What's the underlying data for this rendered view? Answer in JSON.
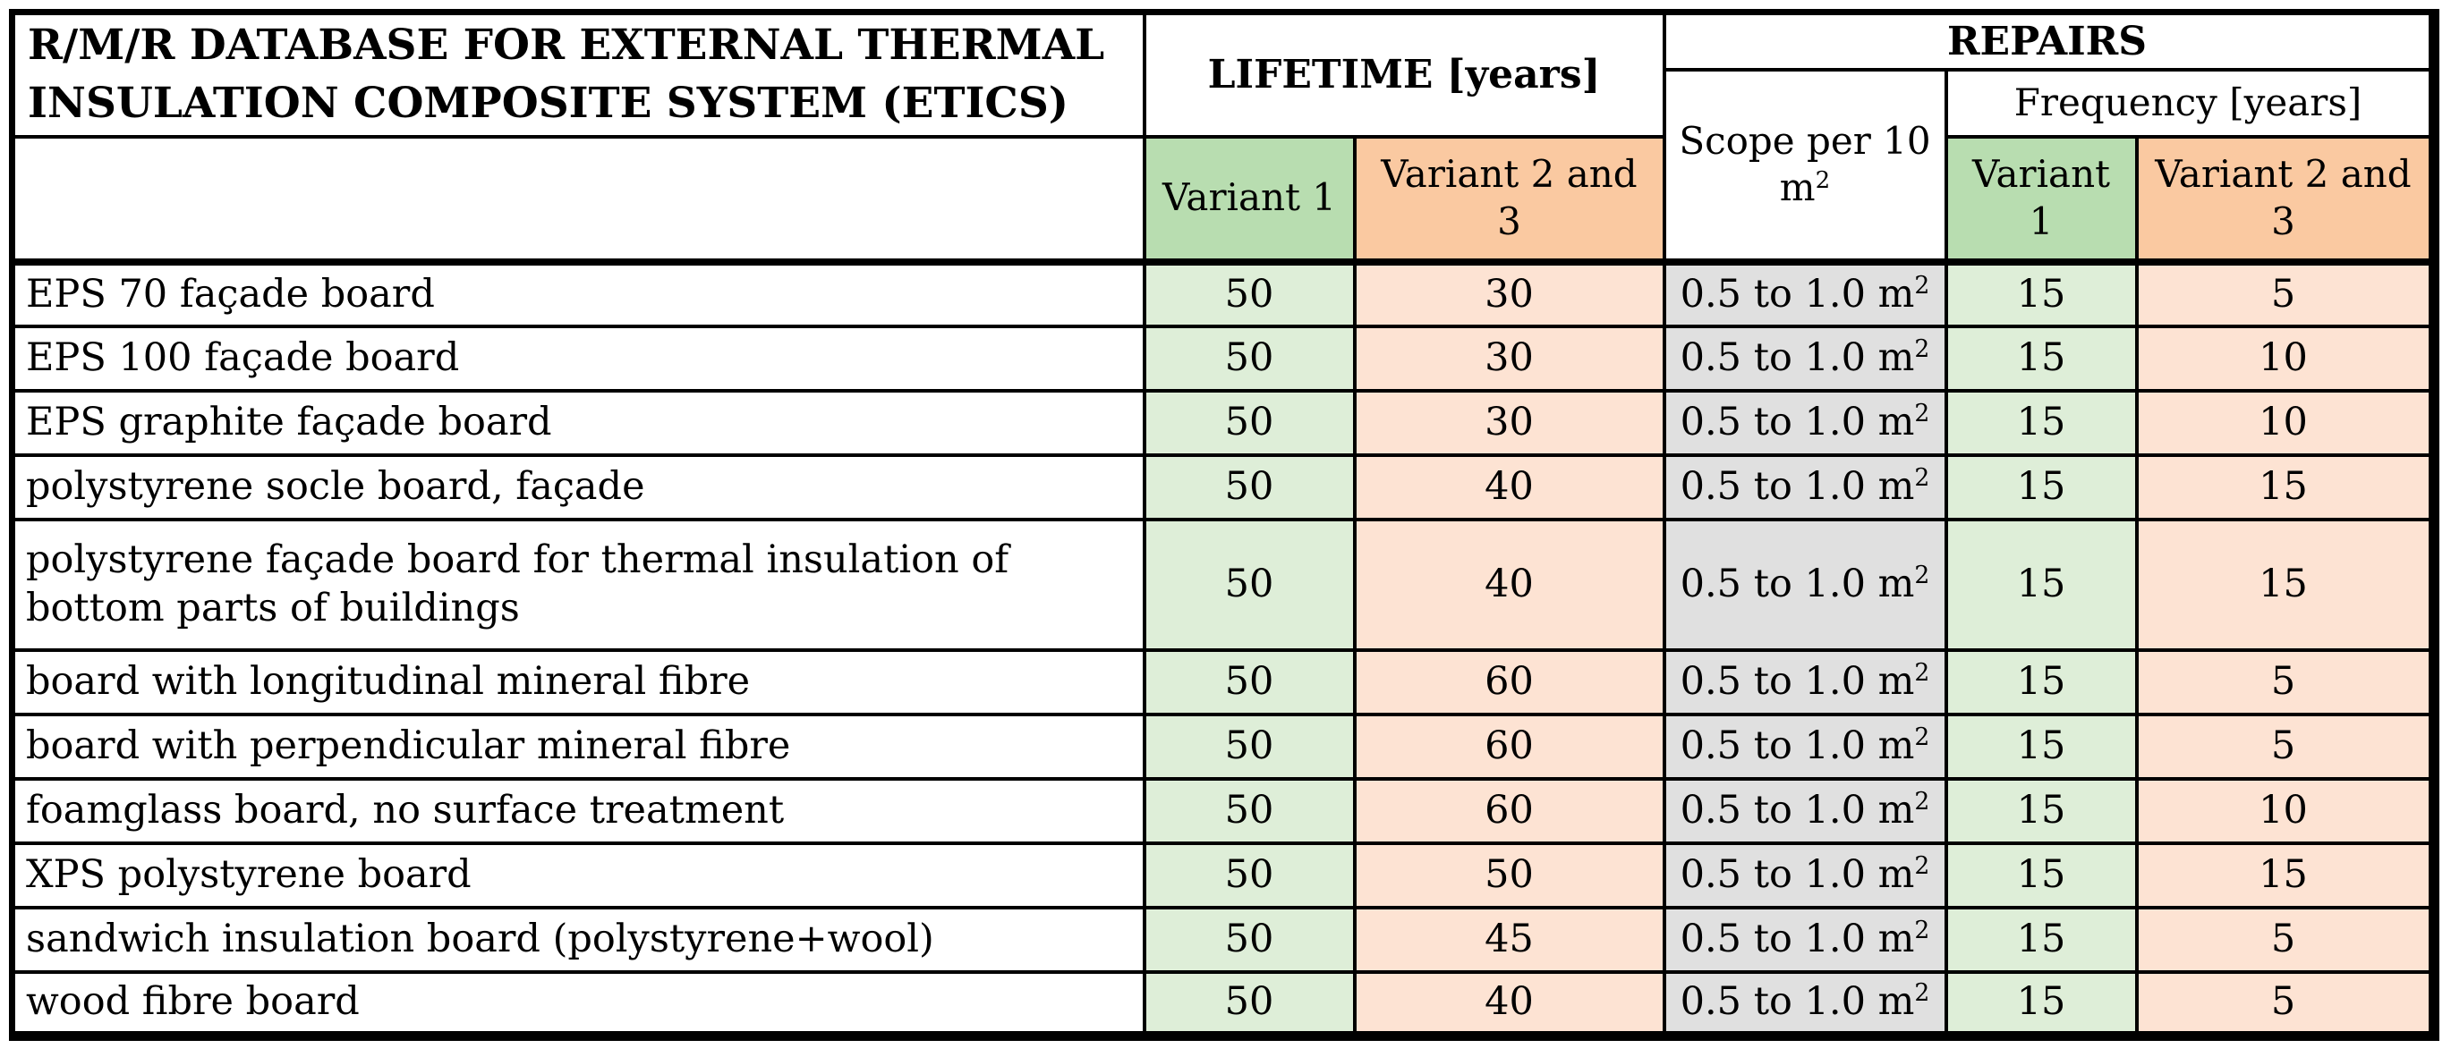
{
  "header": {
    "title": "R/M/R DATABASE FOR EXTERNAL THERMAL\nINSULATION COMPOSITE SYSTEM (ETICS)",
    "lifetime": "LIFETIME [years]",
    "repairs": "REPAIRS",
    "scope": "Scope per 10\nm²",
    "frequency": "Frequency [years]",
    "lifetime_variant1": "Variant 1",
    "lifetime_variant23": "Variant 2 and\n3",
    "frequency_variant1": "Variant\n1",
    "frequency_variant23": "Variant 2 and\n3"
  },
  "rows": [
    {
      "material": "EPS 70 façade board",
      "lifetime_v1": "50",
      "lifetime_v23": "30",
      "scope": "0.5 to 1.0 m²",
      "freq_v1": "15",
      "freq_v23": "5"
    },
    {
      "material": "EPS 100 façade board",
      "lifetime_v1": "50",
      "lifetime_v23": "30",
      "scope": "0.5 to 1.0 m²",
      "freq_v1": "15",
      "freq_v23": "10"
    },
    {
      "material": "EPS graphite façade board",
      "lifetime_v1": "50",
      "lifetime_v23": "30",
      "scope": "0.5 to 1.0 m²",
      "freq_v1": "15",
      "freq_v23": "10"
    },
    {
      "material": "polystyrene socle board, façade",
      "lifetime_v1": "50",
      "lifetime_v23": "40",
      "scope": "0.5 to 1.0 m²",
      "freq_v1": "15",
      "freq_v23": "15"
    },
    {
      "material": "polystyrene façade board for thermal insulation of\nbottom parts of buildings",
      "lifetime_v1": "50",
      "lifetime_v23": "40",
      "scope": "0.5 to 1.0 m²",
      "freq_v1": "15",
      "freq_v23": "15"
    },
    {
      "material": "board with longitudinal mineral fibre",
      "lifetime_v1": "50",
      "lifetime_v23": "60",
      "scope": "0.5 to 1.0 m²",
      "freq_v1": "15",
      "freq_v23": "5"
    },
    {
      "material": "board with perpendicular mineral fibre",
      "lifetime_v1": "50",
      "lifetime_v23": "60",
      "scope": "0.5 to 1.0 m²",
      "freq_v1": "15",
      "freq_v23": "5"
    },
    {
      "material": "foamglass board, no surface treatment",
      "lifetime_v1": "50",
      "lifetime_v23": "60",
      "scope": "0.5 to 1.0 m²",
      "freq_v1": "15",
      "freq_v23": "10"
    },
    {
      "material": "XPS polystyrene board",
      "lifetime_v1": "50",
      "lifetime_v23": "50",
      "scope": "0.5 to 1.0 m²",
      "freq_v1": "15",
      "freq_v23": "15"
    },
    {
      "material": "sandwich insulation board (polystyrene+wool)",
      "lifetime_v1": "50",
      "lifetime_v23": "45",
      "scope": "0.5 to 1.0 m²",
      "freq_v1": "15",
      "freq_v23": "5"
    },
    {
      "material": "wood fibre board",
      "lifetime_v1": "50",
      "lifetime_v23": "40",
      "scope": "0.5 to 1.0 m²",
      "freq_v1": "15",
      "freq_v23": "5"
    }
  ],
  "colors": {
    "header-green": "#b8ddb0",
    "header-orange": "#fac9a1",
    "cell-green": "#deeed8",
    "cell-orange": "#fde3d3",
    "cell-gray": "#e0e0e0",
    "border": "#000000"
  }
}
